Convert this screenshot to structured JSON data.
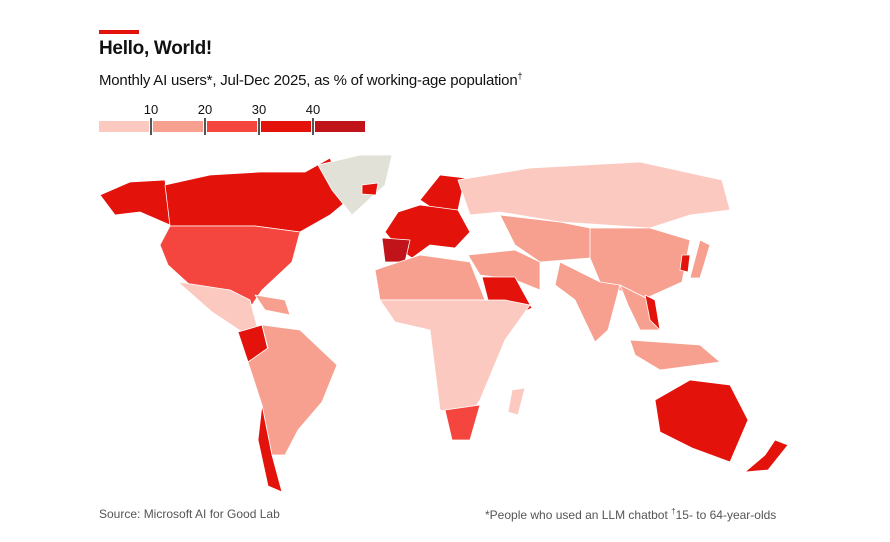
{
  "header": {
    "title": "Hello, World!",
    "subtitle": "Monthly AI users*, Jul-Dec 2025, as % of working-age population",
    "subtitle_mark": "†"
  },
  "legend": {
    "ticks": [
      "10",
      "20",
      "30",
      "40"
    ],
    "bins": [
      {
        "range": "<10",
        "color": "#fcc9c0"
      },
      {
        "range": "10-20",
        "color": "#f7a08f"
      },
      {
        "range": "20-30",
        "color": "#f4453f"
      },
      {
        "range": "30-40",
        "color": "#e3120b"
      },
      {
        "range": "40+",
        "color": "#c0141a"
      }
    ],
    "no_data_color": "#e2e1d8"
  },
  "footer": {
    "source": "Source: Microsoft AI for Good Lab",
    "note": "*People who used an LLM chatbot  ",
    "note2_mark": "†",
    "note2": "15- to 64-year-olds"
  }
}
